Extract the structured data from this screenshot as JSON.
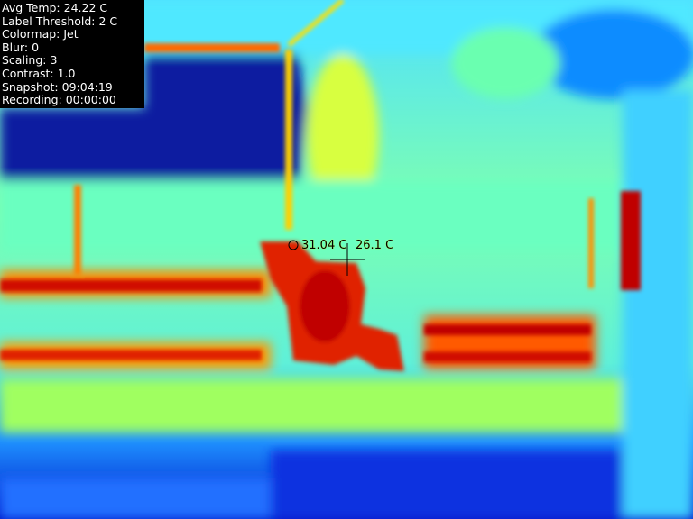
{
  "hud": {
    "avg_temp": "Avg Temp: 24.22 C",
    "label_threshold": "Label Threshold: 2 C",
    "colormap": "Colormap: Jet",
    "blur": "Blur: 0",
    "scaling": "Scaling: 3",
    "contrast": "Contrast: 1.0",
    "snapshot": "Snapshot: 09:04:19",
    "recording": "Recording: 00:00:00"
  },
  "probes": {
    "hotspot": "31.04 C",
    "center": "26.1 C"
  }
}
